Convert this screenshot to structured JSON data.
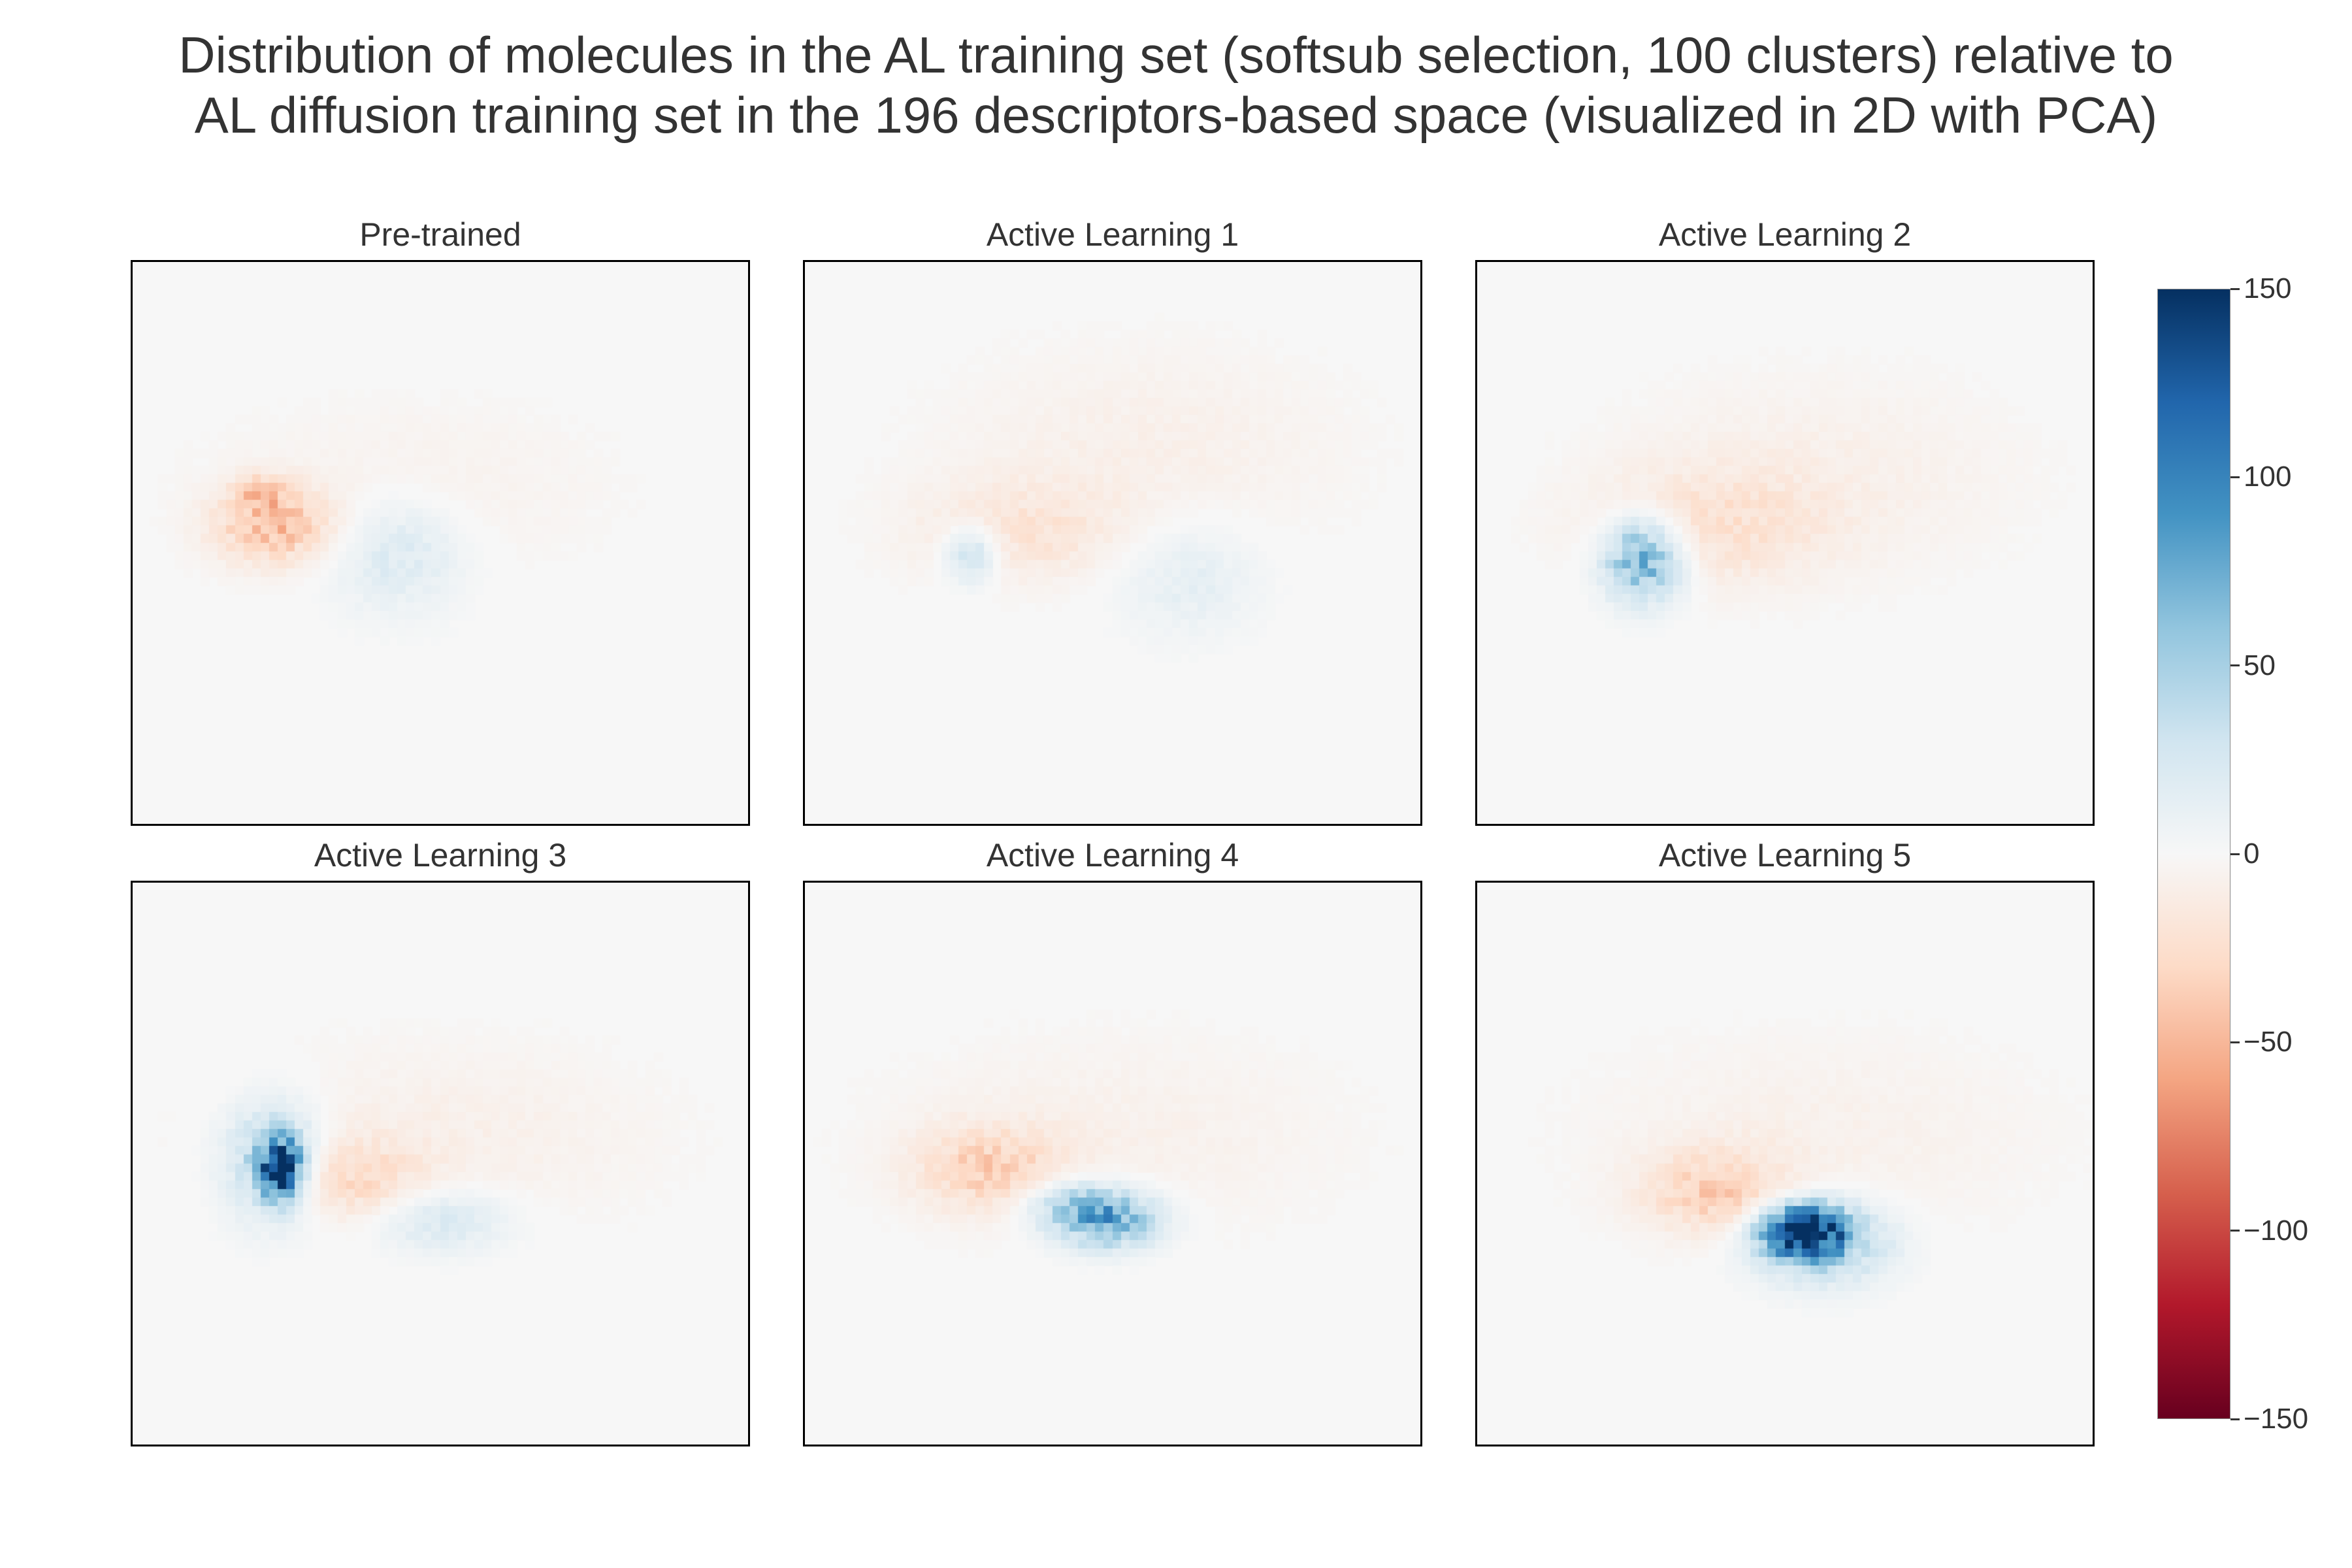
{
  "title_lines": [
    "Distribution of molecules in the AL training set (softsub selection, 100 clusters) relative to",
    "AL diffusion training set in the 196 descriptors-based space (visualized in 2D with PCA)"
  ],
  "colors": {
    "background": "#ffffff",
    "panel_background": "#f7f7f7",
    "frame": "#000000",
    "text": "#333333",
    "colormap": [
      "#67001f",
      "#b2182b",
      "#d6604d",
      "#f4a582",
      "#fddbc7",
      "#f7f7f7",
      "#d1e5f0",
      "#92c5de",
      "#4393c3",
      "#2166ac",
      "#053061"
    ]
  },
  "chart_data": {
    "type": "heatmap",
    "layout": "2x3 grid of heatmap panels sharing one colorbar",
    "axes_visible": false,
    "grid": false,
    "colormap": "RdBu (diverging, red negative, blue positive)",
    "colorbar": {
      "position": "right",
      "range": [
        -150,
        150
      ],
      "ticks": [
        150,
        100,
        50,
        0,
        -50,
        -100,
        -150
      ],
      "tick_labels": [
        "150",
        "100",
        "50",
        "0",
        "−50",
        "−100",
        "−150"
      ]
    },
    "panels": [
      {
        "title": "Pre-trained",
        "blobs": [
          {
            "cx": 0.23,
            "cy": 0.47,
            "sx": 0.065,
            "sy": 0.045,
            "value": -45
          },
          {
            "cx": 0.21,
            "cy": 0.41,
            "sx": 0.03,
            "sy": 0.02,
            "value": -30
          },
          {
            "cx": 0.43,
            "cy": 0.52,
            "sx": 0.075,
            "sy": 0.07,
            "value": 22
          },
          {
            "cx": 0.45,
            "cy": 0.4,
            "sx": 0.22,
            "sy": 0.1,
            "value": -6
          }
        ]
      },
      {
        "title": "Active Learning 1",
        "blobs": [
          {
            "cx": 0.35,
            "cy": 0.48,
            "sx": 0.12,
            "sy": 0.06,
            "value": -18
          },
          {
            "cx": 0.27,
            "cy": 0.52,
            "sx": 0.03,
            "sy": 0.035,
            "value": 40
          },
          {
            "cx": 0.62,
            "cy": 0.56,
            "sx": 0.08,
            "sy": 0.07,
            "value": 15
          },
          {
            "cx": 0.55,
            "cy": 0.33,
            "sx": 0.22,
            "sy": 0.12,
            "value": -8
          }
        ]
      },
      {
        "title": "Active Learning 2",
        "blobs": [
          {
            "cx": 0.27,
            "cy": 0.53,
            "sx": 0.045,
            "sy": 0.05,
            "value": 80
          },
          {
            "cx": 0.38,
            "cy": 0.47,
            "sx": 0.13,
            "sy": 0.07,
            "value": -20
          },
          {
            "cx": 0.55,
            "cy": 0.38,
            "sx": 0.22,
            "sy": 0.12,
            "value": -8
          }
        ]
      },
      {
        "title": "Active Learning 3",
        "blobs": [
          {
            "cx": 0.24,
            "cy": 0.51,
            "sx": 0.022,
            "sy": 0.035,
            "value": 140
          },
          {
            "cx": 0.23,
            "cy": 0.5,
            "sx": 0.055,
            "sy": 0.07,
            "value": 55
          },
          {
            "cx": 0.34,
            "cy": 0.53,
            "sx": 0.09,
            "sy": 0.05,
            "value": -28
          },
          {
            "cx": 0.5,
            "cy": 0.6,
            "sx": 0.08,
            "sy": 0.04,
            "value": 25
          },
          {
            "cx": 0.5,
            "cy": 0.45,
            "sx": 0.24,
            "sy": 0.11,
            "value": -8
          }
        ]
      },
      {
        "title": "Active Learning 4",
        "blobs": [
          {
            "cx": 0.3,
            "cy": 0.51,
            "sx": 0.08,
            "sy": 0.05,
            "value": -35
          },
          {
            "cx": 0.49,
            "cy": 0.6,
            "sx": 0.06,
            "sy": 0.035,
            "value": 75
          },
          {
            "cx": 0.43,
            "cy": 0.57,
            "sx": 0.06,
            "sy": 0.03,
            "value": 30
          },
          {
            "cx": 0.5,
            "cy": 0.45,
            "sx": 0.25,
            "sy": 0.12,
            "value": -7
          }
        ]
      },
      {
        "title": "Active Learning 5",
        "blobs": [
          {
            "cx": 0.53,
            "cy": 0.62,
            "sx": 0.045,
            "sy": 0.03,
            "value": 145
          },
          {
            "cx": 0.56,
            "cy": 0.64,
            "sx": 0.075,
            "sy": 0.05,
            "value": 55
          },
          {
            "cx": 0.39,
            "cy": 0.55,
            "sx": 0.08,
            "sy": 0.05,
            "value": -35
          },
          {
            "cx": 0.55,
            "cy": 0.45,
            "sx": 0.25,
            "sy": 0.12,
            "value": -7
          }
        ]
      }
    ]
  }
}
